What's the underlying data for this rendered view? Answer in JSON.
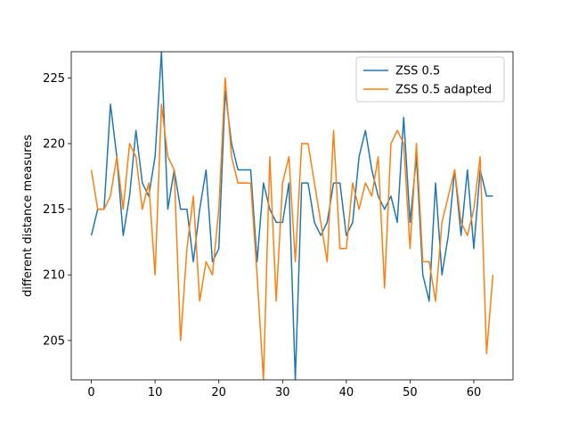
{
  "chart_data": {
    "type": "line",
    "title": "",
    "xlabel": "",
    "ylabel": "different distance measures",
    "xlim": [
      -3.15,
      66.15
    ],
    "ylim": [
      202,
      227
    ],
    "xticks": [
      0,
      10,
      20,
      30,
      40,
      50,
      60
    ],
    "yticks": [
      205,
      210,
      215,
      220,
      225
    ],
    "grid": false,
    "legend_position": "upper right",
    "series": [
      {
        "name": "ZSS 0.5",
        "color": "#1f77b4",
        "x": [
          0,
          1,
          2,
          3,
          4,
          5,
          6,
          7,
          8,
          9,
          10,
          11,
          12,
          13,
          14,
          15,
          16,
          17,
          18,
          19,
          20,
          21,
          22,
          23,
          24,
          25,
          26,
          27,
          28,
          29,
          30,
          31,
          32,
          33,
          34,
          35,
          36,
          37,
          38,
          39,
          40,
          41,
          42,
          43,
          44,
          45,
          46,
          47,
          48,
          49,
          50,
          51,
          52,
          53,
          54,
          55,
          56,
          57,
          58,
          59,
          60,
          61,
          62,
          63
        ],
        "values": [
          213,
          215,
          215,
          223,
          219,
          213,
          216,
          221,
          217,
          216,
          219,
          227,
          215,
          218,
          215,
          215,
          211,
          215,
          218,
          211,
          212,
          224,
          220,
          218,
          218,
          218,
          211,
          217,
          215,
          214,
          214,
          217,
          202,
          217,
          217,
          214,
          213,
          214,
          217,
          217,
          213,
          214,
          219,
          221,
          218,
          216,
          215,
          216,
          214,
          222,
          214,
          219,
          210,
          208,
          217,
          210,
          213,
          218,
          213,
          218,
          212,
          218,
          216,
          216
        ]
      },
      {
        "name": "ZSS 0.5 adapted",
        "color": "#ff7f0e",
        "x": [
          0,
          1,
          2,
          3,
          4,
          5,
          6,
          7,
          8,
          9,
          10,
          11,
          12,
          13,
          14,
          15,
          16,
          17,
          18,
          19,
          20,
          21,
          22,
          23,
          24,
          25,
          26,
          27,
          28,
          29,
          30,
          31,
          32,
          33,
          34,
          35,
          36,
          37,
          38,
          39,
          40,
          41,
          42,
          43,
          44,
          45,
          46,
          47,
          48,
          49,
          50,
          51,
          52,
          53,
          54,
          55,
          56,
          57,
          58,
          59,
          60,
          61,
          62,
          63
        ],
        "values": [
          218,
          215,
          215,
          216,
          219,
          215,
          220,
          219,
          215,
          217,
          210,
          223,
          219,
          218,
          205,
          212,
          216,
          208,
          211,
          210,
          215,
          225,
          219,
          217,
          217,
          217,
          210,
          202,
          219,
          208,
          217,
          219,
          211,
          220,
          220,
          217,
          214,
          211,
          221,
          212,
          212,
          217,
          215,
          217,
          216,
          219,
          209,
          220,
          221,
          220,
          212,
          220,
          211,
          211,
          208,
          214,
          216,
          218,
          214,
          213,
          215,
          219,
          204,
          210
        ]
      }
    ]
  }
}
